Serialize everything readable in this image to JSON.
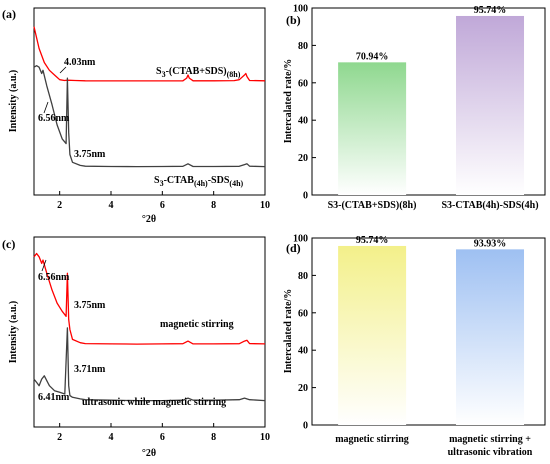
{
  "chart_data": [
    {
      "panel": "(a)",
      "type": "line",
      "xlabel": "°2θ",
      "ylabel": "Intensity (a.u.)",
      "xlim": [
        1,
        10
      ],
      "xticks": [
        2,
        4,
        6,
        8,
        10
      ],
      "yticks_shown": false,
      "series": [
        {
          "name": "S3-(CTAB+SDS)(8h)",
          "color": "#ff0000",
          "x": [
            1.0,
            1.2,
            1.4,
            1.6,
            1.8,
            2.0,
            2.19,
            2.3,
            2.6,
            3.0,
            4.0,
            5.0,
            6.0,
            6.8,
            6.95,
            7.0,
            7.05,
            7.2,
            8.0,
            8.8,
            9.0,
            9.2,
            9.25,
            9.3,
            9.4,
            10.0
          ],
          "y": [
            108,
            94,
            85,
            80,
            77,
            74,
            73.5,
            73.7,
            73.5,
            73.3,
            73.2,
            73.2,
            73.2,
            73.3,
            75,
            77,
            75,
            73.3,
            73.3,
            73.4,
            74,
            77,
            78,
            76,
            73.5,
            73.3
          ]
        },
        {
          "name": "S3-CTAB(4h)-SDS(4h)",
          "color": "#404040",
          "x": [
            1.0,
            1.1,
            1.2,
            1.3,
            1.35,
            1.5,
            1.7,
            1.9,
            2.1,
            2.25,
            2.3,
            2.35,
            2.4,
            2.5,
            2.8,
            3.0,
            4.0,
            5.0,
            6.0,
            6.8,
            7.0,
            7.2,
            8.0,
            9.0,
            9.2,
            9.3,
            9.4,
            10.0
          ],
          "y": [
            82,
            83,
            82,
            78,
            80,
            70,
            58,
            45,
            36,
            33,
            75,
            40,
            26,
            21,
            19,
            18.5,
            18.3,
            18.2,
            18.3,
            18.4,
            20,
            18.3,
            18.3,
            18.4,
            19.5,
            20,
            18.5,
            18.2
          ]
        }
      ],
      "annotations": [
        {
          "text": "4.03nm"
        },
        {
          "text": "6.56nm"
        },
        {
          "text": "3.75nm"
        }
      ]
    },
    {
      "panel": "(b)",
      "type": "bar",
      "ylabel": "Intercalated rate/%",
      "ylim": [
        0,
        100
      ],
      "yticks": [
        0,
        20,
        40,
        60,
        80,
        100
      ],
      "categories": [
        "S3-(CTAB+SDS)(8h)",
        "S3-CTAB(4h)-SDS(4h)"
      ],
      "values": [
        70.94,
        95.74
      ],
      "value_labels": [
        "70.94%",
        "95.74%"
      ],
      "colors": [
        "#8fd88f",
        "#c0a8d8"
      ]
    },
    {
      "panel": "(c)",
      "type": "line",
      "xlabel": "°2θ",
      "ylabel": "Intensity (a.u.)",
      "xlim": [
        1,
        10
      ],
      "xticks": [
        2,
        4,
        6,
        8,
        10
      ],
      "yticks_shown": false,
      "series": [
        {
          "name": "magnetic stirring",
          "color": "#ff0000",
          "x": [
            1.0,
            1.1,
            1.2,
            1.3,
            1.35,
            1.5,
            1.7,
            1.9,
            2.1,
            2.25,
            2.3,
            2.35,
            2.4,
            2.5,
            2.8,
            3.0,
            4.0,
            5.0,
            6.0,
            6.8,
            7.0,
            7.2,
            8.0,
            9.0,
            9.2,
            9.3,
            9.4,
            10.0
          ],
          "y": [
            88,
            90,
            88,
            84,
            86,
            78,
            68,
            60,
            55,
            52,
            78,
            50,
            44,
            38,
            36,
            35.5,
            35.3,
            35.2,
            35.3,
            35.4,
            37,
            35.3,
            35.3,
            35.4,
            37,
            37.5,
            35.5,
            35.3
          ]
        },
        {
          "name": "ultrasonic while magnetic stirring",
          "color": "#404040",
          "x": [
            1.0,
            1.1,
            1.2,
            1.3,
            1.4,
            1.5,
            1.6,
            1.8,
            2.0,
            2.2,
            2.3,
            2.35,
            2.4,
            2.5,
            2.8,
            3.0,
            4.0,
            5.0,
            6.0,
            6.8,
            7.0,
            7.2,
            8.0,
            9.0,
            9.2,
            9.4,
            10.0
          ],
          "y": [
            14,
            12,
            10,
            14,
            16,
            13,
            10,
            7,
            6,
            5,
            45,
            10,
            4,
            3,
            2,
            1.5,
            1.2,
            1.0,
            1.0,
            1.2,
            2.5,
            1.2,
            1.2,
            1.5,
            2.5,
            1.5,
            1.0
          ]
        }
      ],
      "annotations": [
        {
          "text": "6.56nm"
        },
        {
          "text": "3.75nm"
        },
        {
          "text": "3.71nm"
        },
        {
          "text": "6.41nm"
        }
      ]
    },
    {
      "panel": "(d)",
      "type": "bar",
      "ylabel": "Intercalated rate/%",
      "ylim": [
        0,
        100
      ],
      "yticks": [
        0,
        20,
        40,
        60,
        80,
        100
      ],
      "categories": [
        "magnetic stirring",
        "magnetic stirring + ultrasonic vibration"
      ],
      "values": [
        95.74,
        93.93
      ],
      "value_labels": [
        "95.74%",
        "93.93%"
      ],
      "colors": [
        "#f3f08a",
        "#9ec0f2"
      ]
    }
  ]
}
